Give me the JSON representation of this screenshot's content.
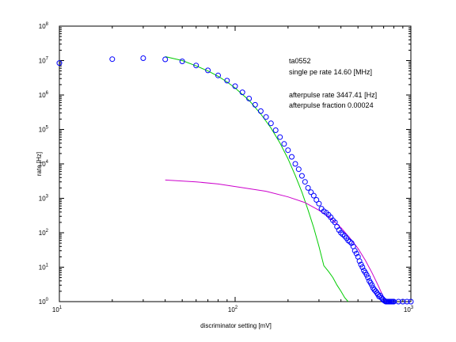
{
  "chart_data": {
    "type": "scatter",
    "xscale": "log",
    "yscale": "log",
    "xlim": [
      10,
      1000
    ],
    "ylim": [
      1,
      100000000
    ],
    "xlabel": "discriminator setting [mV]",
    "ylabel": "rate [Hz]",
    "x_ticks": [
      {
        "base": "10",
        "exp": "1"
      },
      {
        "base": "10",
        "exp": "2"
      },
      {
        "base": "10",
        "exp": "3"
      }
    ],
    "y_ticks": [
      {
        "base": "10",
        "exp": "0"
      },
      {
        "base": "10",
        "exp": "1"
      },
      {
        "base": "10",
        "exp": "2"
      },
      {
        "base": "10",
        "exp": "3"
      },
      {
        "base": "10",
        "exp": "4"
      },
      {
        "base": "10",
        "exp": "5"
      },
      {
        "base": "10",
        "exp": "6"
      },
      {
        "base": "10",
        "exp": "7"
      },
      {
        "base": "10",
        "exp": "8"
      }
    ],
    "grid": false,
    "annotations": {
      "line1": "ta0552",
      "line2": "single pe rate 14.60 [MHz]",
      "line3": "afterpulse rate 3447.41 [Hz]",
      "line4": "afterpulse fraction 0.00024"
    },
    "series": [
      {
        "kind": "markers",
        "marker": "circle",
        "color": "#0000ff",
        "x": [
          10,
          20,
          30,
          40,
          50,
          60,
          70,
          80,
          90,
          100,
          110,
          120,
          130,
          140,
          150,
          160,
          170,
          180,
          190,
          200,
          210,
          220,
          230,
          240,
          250,
          260,
          270,
          280,
          290,
          300,
          310,
          320,
          330,
          340,
          350,
          360,
          370,
          380,
          390,
          400,
          410,
          420,
          430,
          440,
          450,
          460,
          470,
          480,
          490,
          500,
          510,
          520,
          530,
          540,
          550,
          560,
          570,
          580,
          590,
          600,
          610,
          620,
          630,
          640,
          650,
          660,
          670,
          680,
          690,
          700,
          710,
          720,
          730,
          740,
          750,
          760,
          770,
          780,
          790,
          800,
          850,
          900,
          950,
          1000
        ],
        "y": [
          8500000,
          11000000,
          11700000,
          10800000,
          9500000,
          7200000,
          5200000,
          3700000,
          2600000,
          1800000,
          1200000,
          790000,
          520000,
          340000,
          230000,
          150000,
          95000,
          60000,
          38000,
          25000,
          16000,
          10000,
          7000,
          4500,
          3000,
          2000,
          1500,
          1200,
          900,
          700,
          500,
          420,
          380,
          330,
          280,
          230,
          200,
          150,
          120,
          100,
          90,
          80,
          70,
          60,
          55,
          50,
          40,
          30,
          25,
          20,
          15,
          12,
          10,
          8,
          7,
          6,
          5,
          4,
          3.5,
          3,
          2.5,
          2.2,
          2,
          1.8,
          1.6,
          1.4,
          1.5,
          1.3,
          1.2,
          1.1,
          1.05,
          1,
          1,
          1,
          1,
          1,
          1,
          1,
          1,
          1,
          1,
          1,
          1,
          1
        ]
      },
      {
        "kind": "line",
        "color": "#00cc00",
        "x": [
          40,
          50,
          60,
          70,
          80,
          90,
          100,
          120,
          140,
          160,
          180,
          200,
          220,
          240,
          260,
          280,
          300,
          320,
          340,
          360,
          380,
          400,
          420,
          440
        ],
        "y": [
          13000000,
          10000000,
          7000000,
          5000000,
          3500000,
          2400000,
          1600000,
          700000,
          280000,
          110000,
          40000,
          14000,
          4600,
          1500,
          460,
          140,
          40,
          11,
          7.5,
          5,
          3,
          2,
          1.3,
          1
        ]
      },
      {
        "kind": "line",
        "color": "#cc00cc",
        "x": [
          40,
          60,
          80,
          100,
          150,
          200,
          250,
          300,
          350,
          400,
          450,
          500,
          550,
          600,
          650,
          700,
          730
        ],
        "y": [
          3400,
          3000,
          2600,
          2200,
          1600,
          1100,
          750,
          450,
          260,
          140,
          70,
          35,
          16,
          7,
          3,
          1.3,
          1
        ]
      }
    ]
  }
}
